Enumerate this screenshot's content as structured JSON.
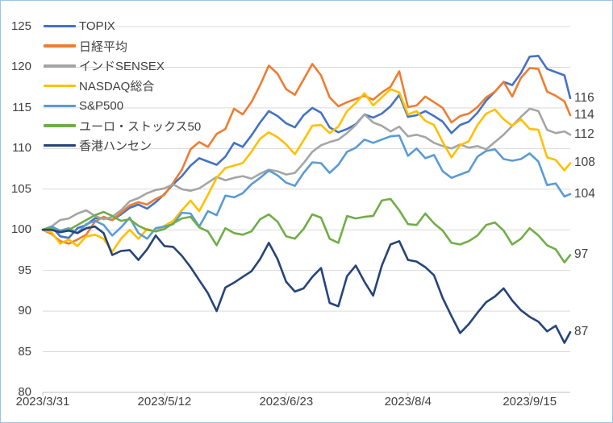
{
  "y_axis": {
    "min": 80,
    "max": 125,
    "step": 5,
    "labels": [
      "125",
      "120",
      "115",
      "110",
      "105",
      "100",
      "95",
      "90",
      "85",
      "80"
    ]
  },
  "x_axis": {
    "labels": [
      "2023/3/31",
      "2023/5/12",
      "2023/6/23",
      "2023/8/4",
      "2023/9/15"
    ],
    "tick_days": [
      0,
      42,
      84,
      126,
      168
    ]
  },
  "end_labels": [
    "116",
    "114",
    "112",
    "108",
    "104",
    "97",
    "87"
  ],
  "legend": {
    "items": [
      {
        "label": "TOPIX",
        "color": "#4472C4"
      },
      {
        "label": "日経平均",
        "color": "#ED7D31"
      },
      {
        "label": "インドSENSEX",
        "color": "#A5A5A5"
      },
      {
        "label": "NASDAQ総合",
        "color": "#FFC000"
      },
      {
        "label": "S&P500",
        "color": "#5B9BD5"
      },
      {
        "label": "ユーロ・ストックス50",
        "color": "#70AD47"
      },
      {
        "label": "香港ハンセン",
        "color": "#264478"
      }
    ]
  },
  "style_colors": {
    "gridline": "#D9D9D9",
    "axis": "#BFBFBF",
    "text": "#404040",
    "frame_border": "#9DC3E6"
  },
  "chart_data": {
    "type": "line",
    "title": "",
    "x_unit": "days since 2023/3/31 (base = 100)",
    "x_max": 182,
    "ylim": [
      80,
      125
    ],
    "grid": "horizontal",
    "legend_position": "top-left",
    "x": [
      0,
      3,
      6,
      9,
      12,
      15,
      18,
      21,
      24,
      27,
      30,
      33,
      36,
      39,
      42,
      45,
      48,
      51,
      54,
      57,
      60,
      63,
      66,
      69,
      72,
      75,
      78,
      81,
      84,
      87,
      90,
      93,
      96,
      99,
      102,
      105,
      108,
      111,
      114,
      117,
      120,
      123,
      126,
      129,
      132,
      135,
      138,
      141,
      144,
      147,
      150,
      153,
      156,
      159,
      162,
      165,
      168,
      171,
      174,
      177,
      180,
      182
    ],
    "series": [
      {
        "name": "TOPIX",
        "color": "#4472C4",
        "end_label": "116",
        "values": [
          100,
          100.4,
          99.2,
          99.0,
          100.2,
          100.6,
          101.4,
          101.5,
          101.2,
          101.9,
          102.7,
          103.1,
          102.6,
          103.4,
          104.4,
          105.6,
          106.6,
          107.9,
          108.8,
          108.4,
          108.0,
          109.0,
          110.7,
          110.2,
          111.6,
          113.2,
          114.6,
          114.0,
          113.1,
          112.6,
          114.1,
          115.0,
          114.4,
          112.6,
          112.0,
          112.4,
          113.0,
          114.2,
          113.8,
          114.3,
          115.2,
          116.6,
          113.9,
          114.1,
          114.6,
          114.0,
          113.3,
          111.9,
          112.9,
          113.3,
          114.4,
          115.9,
          117.0,
          118.2,
          117.8,
          119.3,
          121.3,
          121.4,
          119.8,
          119.4,
          119.0,
          116.2
        ]
      },
      {
        "name": "日経平均",
        "color": "#ED7D31",
        "end_label": "114",
        "values": [
          100,
          99.5,
          98.6,
          98.3,
          98.8,
          99.4,
          101.0,
          101.6,
          101.2,
          102.1,
          103.0,
          103.4,
          103.1,
          103.8,
          104.3,
          105.8,
          107.4,
          109.9,
          110.8,
          110.2,
          111.8,
          112.4,
          114.9,
          114.2,
          115.7,
          117.8,
          120.2,
          119.2,
          117.3,
          116.6,
          118.5,
          120.4,
          119.0,
          116.3,
          115.2,
          115.7,
          116.1,
          116.5,
          116.0,
          116.9,
          117.6,
          119.5,
          115.1,
          115.3,
          116.4,
          115.7,
          115.0,
          113.2,
          114.0,
          114.3,
          115.1,
          116.3,
          117.0,
          118.2,
          116.4,
          118.7,
          119.9,
          119.8,
          117.0,
          116.5,
          115.8,
          114.1
        ]
      },
      {
        "name": "インドSENSEX",
        "color": "#A5A5A5",
        "end_label": "112",
        "values": [
          100,
          100.4,
          101.2,
          101.4,
          102.0,
          102.4,
          101.7,
          101.3,
          101.6,
          102.4,
          103.5,
          103.9,
          104.5,
          104.9,
          105.1,
          105.6,
          105.0,
          104.8,
          105.1,
          105.8,
          106.5,
          106.1,
          106.4,
          106.6,
          106.3,
          106.9,
          107.4,
          107.2,
          106.8,
          107.0,
          108.2,
          109.6,
          110.4,
          110.8,
          111.1,
          111.9,
          112.9,
          114.2,
          113.2,
          112.8,
          112.1,
          112.7,
          111.5,
          111.7,
          111.4,
          110.7,
          110.3,
          110.0,
          110.5,
          110.1,
          110.3,
          109.9,
          110.8,
          111.7,
          112.8,
          113.9,
          114.9,
          114.6,
          112.3,
          111.9,
          112.1,
          111.7
        ]
      },
      {
        "name": "NASDAQ総合",
        "color": "#FFC000",
        "end_label": "108",
        "values": [
          100,
          99.7,
          98.3,
          98.8,
          98.0,
          99.2,
          99.4,
          98.9,
          97.3,
          98.9,
          100.0,
          98.9,
          100.1,
          99.8,
          100.5,
          101.1,
          102.4,
          103.6,
          102.3,
          104.3,
          106.4,
          107.6,
          107.9,
          108.2,
          109.6,
          111.2,
          112.0,
          111.4,
          110.5,
          109.3,
          111.0,
          112.8,
          112.9,
          111.9,
          112.7,
          114.6,
          115.6,
          116.8,
          115.3,
          116.3,
          117.3,
          116.9,
          114.2,
          114.6,
          113.4,
          112.9,
          110.8,
          108.9,
          110.4,
          110.9,
          112.9,
          114.3,
          114.8,
          113.6,
          112.8,
          113.6,
          112.4,
          112.3,
          108.9,
          108.6,
          107.3,
          108.2
        ]
      },
      {
        "name": "S&P500",
        "color": "#5B9BD5",
        "end_label": "104",
        "values": [
          100,
          100.4,
          99.9,
          100.2,
          99.6,
          100.7,
          101.1,
          100.6,
          99.3,
          100.3,
          101.5,
          99.6,
          98.9,
          100.2,
          100.4,
          100.7,
          102.1,
          102.0,
          100.4,
          102.3,
          101.8,
          104.2,
          104.0,
          104.5,
          105.6,
          106.4,
          107.3,
          106.7,
          105.8,
          105.4,
          107.0,
          108.3,
          108.2,
          107.0,
          108.0,
          109.6,
          110.1,
          111.1,
          110.7,
          111.1,
          111.5,
          111.6,
          109.1,
          110.0,
          108.8,
          109.2,
          107.2,
          106.4,
          106.8,
          107.2,
          109.0,
          109.7,
          109.9,
          108.7,
          108.5,
          108.7,
          109.4,
          108.4,
          105.5,
          105.7,
          104.1,
          104.4
        ]
      },
      {
        "name": "ユーロ・ストックス50",
        "color": "#70AD47",
        "end_label": "97",
        "values": [
          100,
          100.2,
          99.7,
          100.0,
          100.6,
          101.2,
          101.8,
          102.2,
          101.7,
          101.1,
          101.3,
          100.5,
          100.0,
          99.8,
          100.1,
          100.8,
          101.4,
          101.6,
          100.3,
          99.8,
          98.1,
          100.2,
          99.6,
          99.4,
          99.8,
          101.3,
          101.9,
          101.0,
          99.2,
          98.9,
          100.1,
          101.9,
          101.5,
          98.9,
          98.4,
          101.7,
          101.4,
          101.6,
          101.7,
          103.6,
          103.8,
          102.4,
          100.7,
          100.6,
          102.0,
          100.8,
          99.9,
          98.4,
          98.2,
          98.6,
          99.3,
          100.6,
          100.9,
          99.9,
          98.2,
          98.9,
          100.2,
          99.3,
          98.1,
          97.6,
          96.0,
          96.9
        ]
      },
      {
        "name": "香港ハンセン",
        "color": "#264478",
        "end_label": "87",
        "values": [
          100,
          100.0,
          99.7,
          99.9,
          99.6,
          100.2,
          100.4,
          99.6,
          96.9,
          97.4,
          97.5,
          96.3,
          97.6,
          99.3,
          98.0,
          97.9,
          96.8,
          95.4,
          93.8,
          92.2,
          90.0,
          92.9,
          93.5,
          94.2,
          94.9,
          96.4,
          98.4,
          96.4,
          93.6,
          92.4,
          92.8,
          94.2,
          95.3,
          91.0,
          90.6,
          94.3,
          95.6,
          93.6,
          91.9,
          95.6,
          98.2,
          98.6,
          96.3,
          96.1,
          95.4,
          94.4,
          91.6,
          89.4,
          87.3,
          88.4,
          89.8,
          91.1,
          91.8,
          92.8,
          91.3,
          90.1,
          89.3,
          88.7,
          87.5,
          88.2,
          86.1,
          87.4
        ]
      }
    ]
  }
}
